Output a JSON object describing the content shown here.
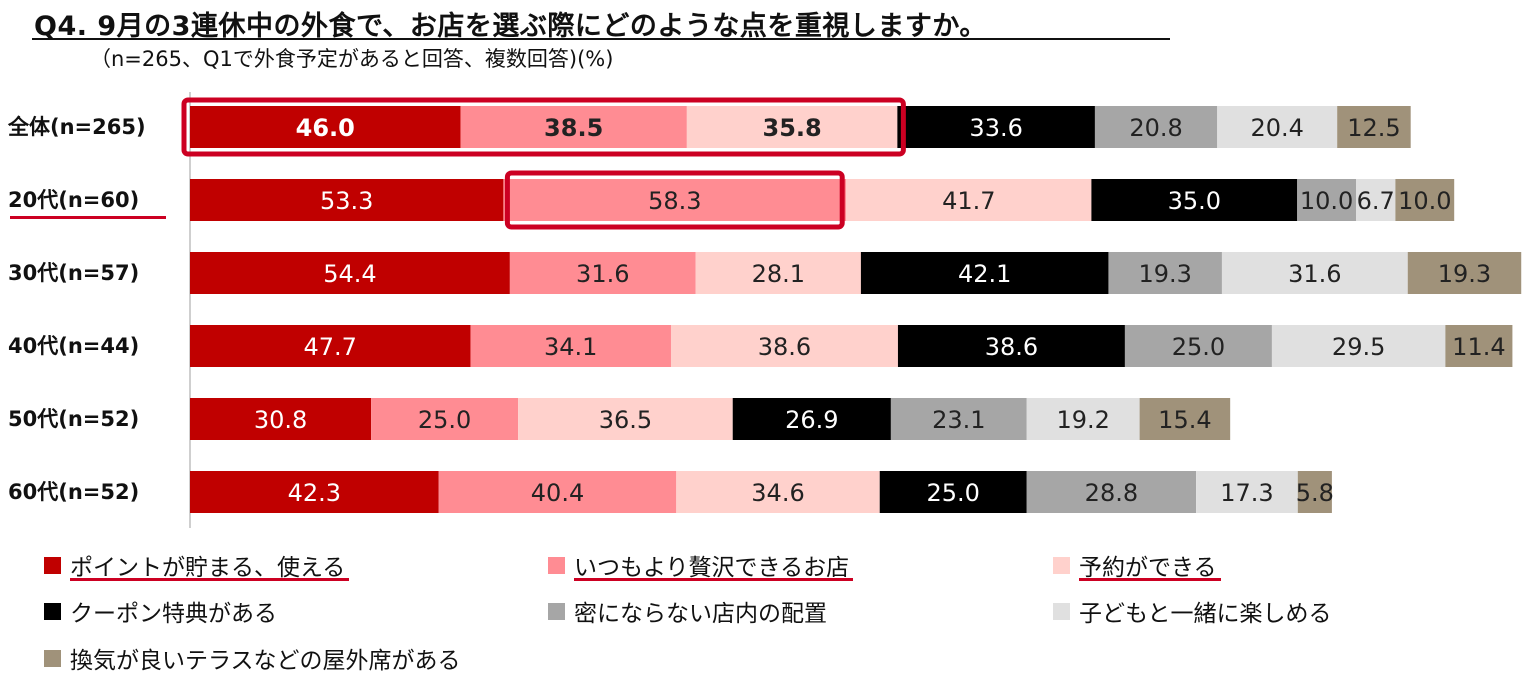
{
  "title": "Q4. 9月の3連休中の外食で、お店を選ぶ際にどのような点を重視しますか。",
  "subtitle": "（n=265、Q1で外食予定があると回答、複数回答)(%)",
  "chart_data": {
    "type": "bar",
    "orientation": "horizontal-stacked",
    "unit": "%",
    "categories": [
      "全体(n=265)",
      "20代(n=60)",
      "30代(n=57)",
      "40代(n=44)",
      "50代(n=52)",
      "60代(n=52)"
    ],
    "series": [
      {
        "name": "ポイントが貯まる、使える",
        "color": "#c00000",
        "text_color": "#ffffff",
        "values": [
          46.0,
          53.3,
          54.4,
          47.7,
          30.8,
          42.3
        ]
      },
      {
        "name": "いつもより贅沢できるお店",
        "color": "#ff8c93",
        "text_color": "#222222",
        "values": [
          38.5,
          58.3,
          31.6,
          34.1,
          25.0,
          40.4
        ]
      },
      {
        "name": "予約ができる",
        "color": "#ffd1cc",
        "text_color": "#222222",
        "values": [
          35.8,
          41.7,
          28.1,
          38.6,
          36.5,
          34.6
        ]
      },
      {
        "name": "クーポン特典がある",
        "color": "#000000",
        "text_color": "#ffffff",
        "values": [
          33.6,
          35.0,
          42.1,
          38.6,
          26.9,
          25.0
        ]
      },
      {
        "name": "密にならない店内の配置",
        "color": "#a6a6a6",
        "text_color": "#222222",
        "values": [
          20.8,
          10.0,
          19.3,
          25.0,
          23.1,
          28.8
        ]
      },
      {
        "name": "子どもと一緒に楽しめる",
        "color": "#e0e0e0",
        "text_color": "#222222",
        "values": [
          20.4,
          6.7,
          31.6,
          29.5,
          19.2,
          17.3
        ]
      },
      {
        "name": "換気が良いテラスなどの屋外席がある",
        "color": "#a0927a",
        "text_color": "#222222",
        "values": [
          12.5,
          10.0,
          19.3,
          11.4,
          15.4,
          5.8
        ]
      }
    ],
    "value_labels": [
      [
        "46.0",
        "38.5",
        "35.8",
        "33.6",
        "20.8",
        "20.4",
        "12.5"
      ],
      [
        "53.3",
        "58.3",
        "41.7",
        "35.0",
        "10.0",
        "6.7",
        "10.0"
      ],
      [
        "54.4",
        "31.6",
        "28.1",
        "42.1",
        "19.3",
        "31.6",
        "19.3"
      ],
      [
        "47.7",
        "34.1",
        "38.6",
        "38.6",
        "25.0",
        "29.5",
        "11.4"
      ],
      [
        "30.8",
        "25.0",
        "36.5",
        "26.9",
        "23.1",
        "19.2",
        "15.4"
      ],
      [
        "42.3",
        "40.4",
        "34.6",
        "25.0",
        "28.8",
        "17.3",
        "5.8"
      ]
    ],
    "emphasized_categories": [
      "全体(n=265)",
      "20代(n=60)"
    ],
    "highlight_boxes": [
      {
        "category": "全体(n=265)",
        "series": [
          "ポイントが貯まる、使える",
          "いつもより贅沢できるお店",
          "予約ができる"
        ]
      },
      {
        "category": "20代(n=60)",
        "series": [
          "いつもより贅沢できるお店"
        ]
      }
    ],
    "legend_underlined": [
      "ポイントが貯まる、使える",
      "いつもより贅沢できるお店",
      "予約ができる"
    ],
    "legend_position": "bottom",
    "highlight_color": "#cc0022"
  }
}
